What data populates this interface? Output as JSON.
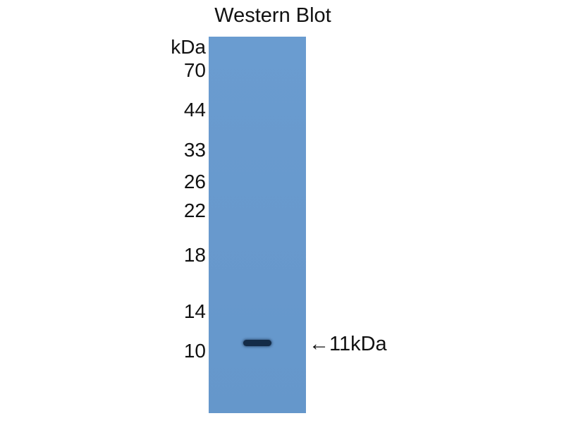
{
  "title": "Western Blot",
  "unit_label": "kDa",
  "markers": [
    "70",
    "44",
    "33",
    "26",
    "22",
    "18",
    "14",
    "10"
  ],
  "band_label": "←11kDa",
  "colors": {
    "membrane": "#6899cd",
    "band": "#142c48"
  }
}
